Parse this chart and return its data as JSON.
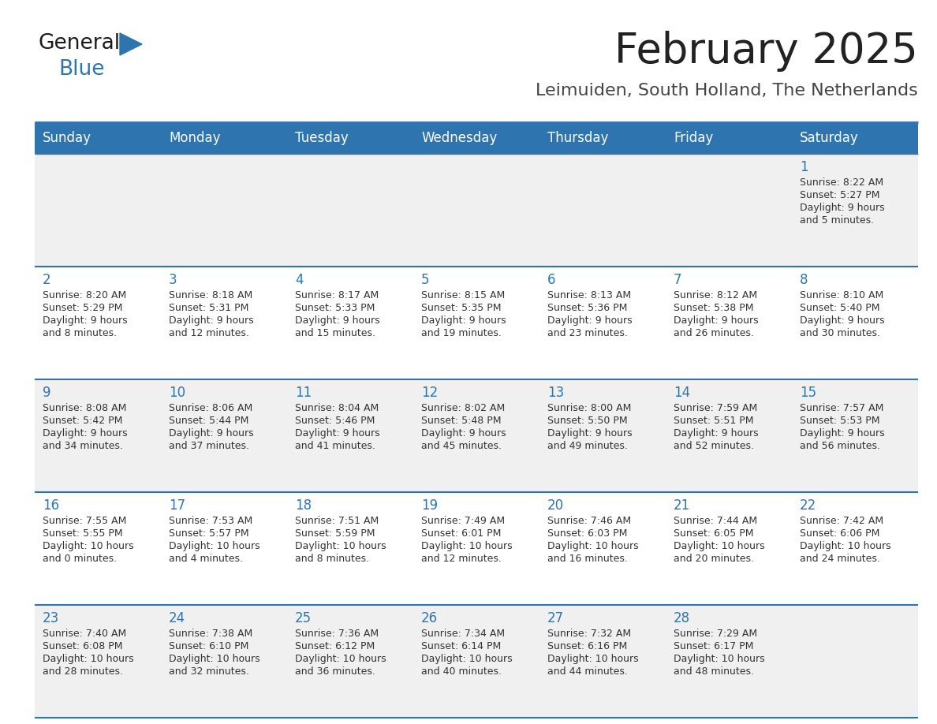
{
  "title": "February 2025",
  "subtitle": "Leimuiden, South Holland, The Netherlands",
  "days_of_week": [
    "Sunday",
    "Monday",
    "Tuesday",
    "Wednesday",
    "Thursday",
    "Friday",
    "Saturday"
  ],
  "header_bg": "#2e75b0",
  "header_text": "#ffffff",
  "cell_bg_odd": "#f0f0f0",
  "cell_bg_even": "#ffffff",
  "border_color": "#2e75b0",
  "text_color": "#333333",
  "day_num_color": "#2e75b0",
  "title_color": "#222222",
  "subtitle_color": "#444444",
  "logo_general_color": "#1a1a1a",
  "logo_blue_color": "#2e75b0",
  "weeks": [
    [
      {
        "day": null,
        "sunrise": null,
        "sunset": null,
        "daylight_line1": null,
        "daylight_line2": null
      },
      {
        "day": null,
        "sunrise": null,
        "sunset": null,
        "daylight_line1": null,
        "daylight_line2": null
      },
      {
        "day": null,
        "sunrise": null,
        "sunset": null,
        "daylight_line1": null,
        "daylight_line2": null
      },
      {
        "day": null,
        "sunrise": null,
        "sunset": null,
        "daylight_line1": null,
        "daylight_line2": null
      },
      {
        "day": null,
        "sunrise": null,
        "sunset": null,
        "daylight_line1": null,
        "daylight_line2": null
      },
      {
        "day": null,
        "sunrise": null,
        "sunset": null,
        "daylight_line1": null,
        "daylight_line2": null
      },
      {
        "day": 1,
        "sunrise": "8:22 AM",
        "sunset": "5:27 PM",
        "daylight_line1": "Daylight: 9 hours",
        "daylight_line2": "and 5 minutes."
      }
    ],
    [
      {
        "day": 2,
        "sunrise": "8:20 AM",
        "sunset": "5:29 PM",
        "daylight_line1": "Daylight: 9 hours",
        "daylight_line2": "and 8 minutes."
      },
      {
        "day": 3,
        "sunrise": "8:18 AM",
        "sunset": "5:31 PM",
        "daylight_line1": "Daylight: 9 hours",
        "daylight_line2": "and 12 minutes."
      },
      {
        "day": 4,
        "sunrise": "8:17 AM",
        "sunset": "5:33 PM",
        "daylight_line1": "Daylight: 9 hours",
        "daylight_line2": "and 15 minutes."
      },
      {
        "day": 5,
        "sunrise": "8:15 AM",
        "sunset": "5:35 PM",
        "daylight_line1": "Daylight: 9 hours",
        "daylight_line2": "and 19 minutes."
      },
      {
        "day": 6,
        "sunrise": "8:13 AM",
        "sunset": "5:36 PM",
        "daylight_line1": "Daylight: 9 hours",
        "daylight_line2": "and 23 minutes."
      },
      {
        "day": 7,
        "sunrise": "8:12 AM",
        "sunset": "5:38 PM",
        "daylight_line1": "Daylight: 9 hours",
        "daylight_line2": "and 26 minutes."
      },
      {
        "day": 8,
        "sunrise": "8:10 AM",
        "sunset": "5:40 PM",
        "daylight_line1": "Daylight: 9 hours",
        "daylight_line2": "and 30 minutes."
      }
    ],
    [
      {
        "day": 9,
        "sunrise": "8:08 AM",
        "sunset": "5:42 PM",
        "daylight_line1": "Daylight: 9 hours",
        "daylight_line2": "and 34 minutes."
      },
      {
        "day": 10,
        "sunrise": "8:06 AM",
        "sunset": "5:44 PM",
        "daylight_line1": "Daylight: 9 hours",
        "daylight_line2": "and 37 minutes."
      },
      {
        "day": 11,
        "sunrise": "8:04 AM",
        "sunset": "5:46 PM",
        "daylight_line1": "Daylight: 9 hours",
        "daylight_line2": "and 41 minutes."
      },
      {
        "day": 12,
        "sunrise": "8:02 AM",
        "sunset": "5:48 PM",
        "daylight_line1": "Daylight: 9 hours",
        "daylight_line2": "and 45 minutes."
      },
      {
        "day": 13,
        "sunrise": "8:00 AM",
        "sunset": "5:50 PM",
        "daylight_line1": "Daylight: 9 hours",
        "daylight_line2": "and 49 minutes."
      },
      {
        "day": 14,
        "sunrise": "7:59 AM",
        "sunset": "5:51 PM",
        "daylight_line1": "Daylight: 9 hours",
        "daylight_line2": "and 52 minutes."
      },
      {
        "day": 15,
        "sunrise": "7:57 AM",
        "sunset": "5:53 PM",
        "daylight_line1": "Daylight: 9 hours",
        "daylight_line2": "and 56 minutes."
      }
    ],
    [
      {
        "day": 16,
        "sunrise": "7:55 AM",
        "sunset": "5:55 PM",
        "daylight_line1": "Daylight: 10 hours",
        "daylight_line2": "and 0 minutes."
      },
      {
        "day": 17,
        "sunrise": "7:53 AM",
        "sunset": "5:57 PM",
        "daylight_line1": "Daylight: 10 hours",
        "daylight_line2": "and 4 minutes."
      },
      {
        "day": 18,
        "sunrise": "7:51 AM",
        "sunset": "5:59 PM",
        "daylight_line1": "Daylight: 10 hours",
        "daylight_line2": "and 8 minutes."
      },
      {
        "day": 19,
        "sunrise": "7:49 AM",
        "sunset": "6:01 PM",
        "daylight_line1": "Daylight: 10 hours",
        "daylight_line2": "and 12 minutes."
      },
      {
        "day": 20,
        "sunrise": "7:46 AM",
        "sunset": "6:03 PM",
        "daylight_line1": "Daylight: 10 hours",
        "daylight_line2": "and 16 minutes."
      },
      {
        "day": 21,
        "sunrise": "7:44 AM",
        "sunset": "6:05 PM",
        "daylight_line1": "Daylight: 10 hours",
        "daylight_line2": "and 20 minutes."
      },
      {
        "day": 22,
        "sunrise": "7:42 AM",
        "sunset": "6:06 PM",
        "daylight_line1": "Daylight: 10 hours",
        "daylight_line2": "and 24 minutes."
      }
    ],
    [
      {
        "day": 23,
        "sunrise": "7:40 AM",
        "sunset": "6:08 PM",
        "daylight_line1": "Daylight: 10 hours",
        "daylight_line2": "and 28 minutes."
      },
      {
        "day": 24,
        "sunrise": "7:38 AM",
        "sunset": "6:10 PM",
        "daylight_line1": "Daylight: 10 hours",
        "daylight_line2": "and 32 minutes."
      },
      {
        "day": 25,
        "sunrise": "7:36 AM",
        "sunset": "6:12 PM",
        "daylight_line1": "Daylight: 10 hours",
        "daylight_line2": "and 36 minutes."
      },
      {
        "day": 26,
        "sunrise": "7:34 AM",
        "sunset": "6:14 PM",
        "daylight_line1": "Daylight: 10 hours",
        "daylight_line2": "and 40 minutes."
      },
      {
        "day": 27,
        "sunrise": "7:32 AM",
        "sunset": "6:16 PM",
        "daylight_line1": "Daylight: 10 hours",
        "daylight_line2": "and 44 minutes."
      },
      {
        "day": 28,
        "sunrise": "7:29 AM",
        "sunset": "6:17 PM",
        "daylight_line1": "Daylight: 10 hours",
        "daylight_line2": "and 48 minutes."
      },
      {
        "day": null,
        "sunrise": null,
        "sunset": null,
        "daylight_line1": null,
        "daylight_line2": null
      }
    ]
  ]
}
